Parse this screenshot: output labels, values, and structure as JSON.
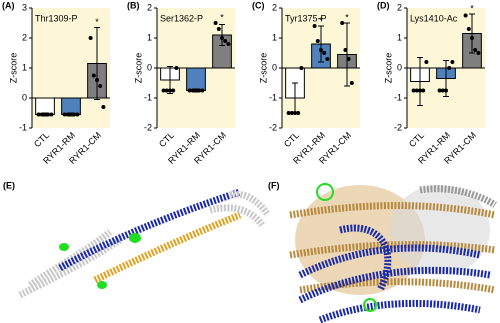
{
  "chart_data": [
    {
      "type": "bar",
      "label": "(A)",
      "title": "Thr1309-P",
      "ylabel": "Z-score",
      "categories": [
        "CTL",
        "RYR1-RM",
        "RYR1-CM"
      ],
      "values": [
        -0.55,
        -0.55,
        1.15
      ],
      "errors": [
        0.05,
        0.05,
        1.2
      ],
      "points": [
        [
          -0.55,
          -0.55,
          -0.55,
          -0.55,
          -0.55
        ],
        [
          -0.55,
          -0.55,
          -0.55,
          -0.55,
          -0.55
        ],
        [
          2.0,
          0.75,
          0.6,
          0.4,
          -0.3
        ]
      ],
      "significance": [
        null,
        null,
        "*"
      ],
      "colors": [
        "#ffffff",
        "#4f81bd",
        "#7f7f7f"
      ],
      "background": "#fdf7d7",
      "ylim": [
        -1,
        3
      ],
      "yticks": [
        -1,
        0,
        1,
        2,
        3
      ]
    },
    {
      "type": "bar",
      "label": "(B)",
      "title": "Ser1362-P",
      "ylabel": "Z-score",
      "categories": [
        "CTL",
        "RYR1-RM",
        "RYR1-CM"
      ],
      "values": [
        -0.4,
        -0.75,
        1.1
      ],
      "errors": [
        0.45,
        0.05,
        0.35
      ],
      "points": [
        [
          -0.75,
          -0.75,
          -0.75,
          -0.75,
          0.0
        ],
        [
          -0.75,
          -0.75,
          -0.75,
          -0.75,
          -0.75
        ],
        [
          1.5,
          1.3,
          1.0,
          0.9,
          0.8
        ]
      ],
      "significance": [
        null,
        null,
        "*"
      ],
      "colors": [
        "#ffffff",
        "#4f81bd",
        "#7f7f7f"
      ],
      "background": "#fdf7d7",
      "ylim": [
        -2,
        2
      ],
      "yticks": [
        -2,
        -1,
        0,
        1,
        2
      ]
    },
    {
      "type": "bar",
      "label": "(C)",
      "title": "Tyr1375-P",
      "ylabel": "Z-score",
      "categories": [
        "CTL",
        "RYR1-RM",
        "RYR1-CM"
      ],
      "values": [
        -1.0,
        0.8,
        0.45
      ],
      "errors": [
        0.5,
        0.6,
        1.05
      ],
      "points": [
        [
          -1.5,
          -1.5,
          -1.5,
          -1.5,
          0.0
        ],
        [
          1.4,
          0.9,
          0.6,
          0.5,
          0.3
        ],
        [
          1.5,
          0.6,
          0.3,
          -0.5
        ]
      ],
      "significance": [
        null,
        "*",
        "*"
      ],
      "colors": [
        "#ffffff",
        "#4f81bd",
        "#7f7f7f"
      ],
      "background": "#fdf7d7",
      "ylim": [
        -2,
        2
      ],
      "yticks": [
        -2,
        -1,
        0,
        1,
        2
      ]
    },
    {
      "type": "bar",
      "label": "(D)",
      "title": "Lys1410-Ac",
      "ylabel": "Z-score",
      "categories": [
        "CTL",
        "RYR1-RM",
        "RYR1-CM"
      ],
      "values": [
        -0.45,
        -0.35,
        1.15
      ],
      "errors": [
        0.8,
        0.6,
        0.65
      ],
      "points": [
        [
          -0.75,
          -0.75,
          -0.75,
          -0.75,
          0.2
        ],
        [
          -0.75,
          -0.75,
          -0.75,
          0.0,
          0.2
        ],
        [
          1.75,
          1.3,
          1.0,
          0.6,
          0.5
        ]
      ],
      "significance": [
        null,
        null,
        "*"
      ],
      "colors": [
        "#ffffff",
        "#4f81bd",
        "#7f7f7f"
      ],
      "background": "#fdf7d7",
      "ylim": [
        -2,
        2
      ],
      "yticks": [
        -2,
        -1,
        0,
        1,
        2
      ]
    }
  ],
  "images": [
    {
      "label": "(E)"
    },
    {
      "label": "(F)"
    }
  ]
}
